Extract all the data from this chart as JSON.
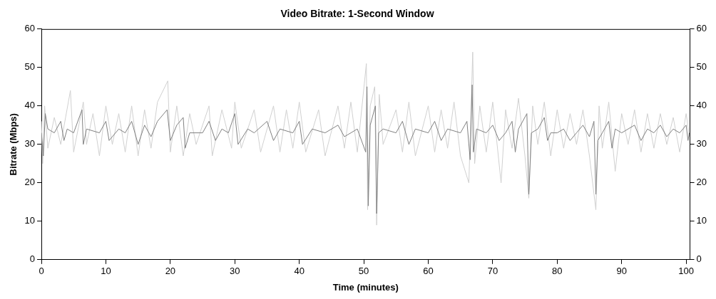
{
  "chart_data": {
    "type": "line",
    "title": "Video Bitrate: 1-Second Window",
    "xlabel": "Time (minutes)",
    "ylabel": "Bitrate (Mbps)",
    "xlim": [
      0,
      100.6
    ],
    "xticks": [
      0,
      10,
      20,
      30,
      40,
      50,
      60,
      70,
      80,
      90,
      100
    ],
    "ylim": [
      0,
      60
    ],
    "yticks": [
      0,
      10,
      20,
      30,
      40,
      50,
      60
    ],
    "y2lim": [
      0,
      60
    ],
    "y2ticks": [
      0,
      10,
      20,
      30,
      40,
      50,
      60
    ],
    "grid": false,
    "legend": false,
    "marker": "none",
    "line_style": "solid",
    "series": [
      {
        "color": "#d0d0d0",
        "x": [
          0,
          0.2,
          0.5,
          1,
          2,
          3,
          4.5,
          5,
          6.5,
          7,
          8,
          9,
          10,
          11,
          12,
          13,
          14,
          15,
          16,
          17,
          18,
          19.6,
          20,
          21,
          22,
          23,
          24,
          26,
          26.5,
          28,
          29.5,
          30,
          31,
          33,
          34,
          36,
          37,
          38,
          39,
          40,
          41,
          43,
          44,
          46,
          47,
          48,
          49,
          50.4,
          50.6,
          51,
          51.7,
          52,
          52.4,
          53,
          55,
          56,
          57,
          58,
          60,
          61,
          62,
          63,
          64,
          65,
          66.3,
          66.9,
          67.2,
          68,
          69,
          70,
          71.3,
          72,
          73,
          74,
          75,
          75.6,
          76.2,
          77,
          78,
          79,
          80,
          81,
          82,
          83,
          84,
          85,
          86,
          86.5,
          87,
          88,
          89,
          90,
          91,
          92,
          93,
          94,
          95,
          96,
          97,
          98,
          99,
          100,
          100.5
        ],
        "values": [
          36,
          25,
          40,
          29,
          37,
          30,
          44,
          28,
          41,
          30,
          38,
          27,
          40,
          30,
          38,
          28,
          40,
          27,
          39,
          29,
          41,
          46.5,
          28,
          40,
          27,
          38,
          30,
          40,
          27,
          39,
          29,
          41,
          29,
          39,
          28,
          40,
          28,
          39,
          29,
          41,
          28,
          39,
          27,
          40,
          29,
          41,
          28,
          51,
          13,
          40,
          45,
          9,
          43,
          30,
          39,
          28,
          41,
          27,
          40,
          28,
          39,
          29,
          41,
          27,
          20,
          54,
          25,
          40,
          28,
          41,
          20,
          39,
          29,
          42,
          27,
          16,
          40,
          30,
          41,
          27,
          39,
          29,
          38,
          30,
          39,
          27,
          13,
          40,
          29,
          41,
          23,
          38,
          30,
          39,
          28,
          38,
          29,
          38,
          30,
          37,
          28,
          38,
          32
        ]
      },
      {
        "color": "#808080",
        "x": [
          0,
          0.3,
          0.6,
          1,
          2,
          3,
          3.5,
          4,
          5,
          6.3,
          6.5,
          7,
          9,
          10,
          10.5,
          12,
          13,
          14,
          15,
          16,
          17,
          18,
          19.5,
          20,
          21,
          22,
          22.3,
          23,
          25,
          26,
          27,
          28,
          29,
          30,
          30.5,
          32,
          33,
          35,
          36,
          37,
          39,
          40,
          40.5,
          42,
          44,
          46,
          47,
          49,
          50.3,
          50.5,
          50.7,
          51,
          51.8,
          52,
          52.3,
          53,
          55,
          56,
          57,
          58,
          60,
          61,
          62,
          63,
          65,
          66,
          66.5,
          66.8,
          67,
          67.5,
          69,
          70,
          71,
          72,
          73,
          73.5,
          74,
          75.3,
          75.6,
          76,
          77,
          78,
          78.5,
          79,
          80,
          81,
          82,
          83,
          84,
          85,
          85.7,
          86,
          86.3,
          87,
          88,
          88.5,
          89,
          90,
          92,
          93,
          94,
          95,
          96,
          97,
          98,
          99,
          100,
          100.3,
          100.5
        ],
        "values": [
          33,
          27,
          38,
          34,
          33,
          36,
          31,
          34,
          33,
          39,
          30,
          34,
          33,
          36,
          31,
          34,
          33,
          36,
          30,
          35,
          32,
          36,
          39,
          31,
          35,
          37,
          29,
          33,
          33,
          36,
          31,
          34,
          33,
          38,
          30,
          34,
          33,
          36,
          31,
          34,
          33,
          36,
          30,
          34,
          33,
          35,
          32,
          34,
          28,
          45,
          14,
          35,
          40,
          12,
          33,
          34,
          33,
          36,
          30,
          34,
          33,
          36,
          31,
          34,
          33,
          36,
          26,
          45.5,
          28,
          34,
          33,
          35,
          31,
          33,
          36,
          28,
          34,
          38,
          17,
          33,
          34,
          37,
          31,
          33,
          33,
          34,
          31,
          33,
          35,
          32,
          36,
          17,
          31,
          33,
          36,
          29,
          34,
          33,
          35,
          31,
          34,
          33,
          35,
          32,
          34,
          33,
          35,
          31,
          33
        ]
      }
    ]
  }
}
